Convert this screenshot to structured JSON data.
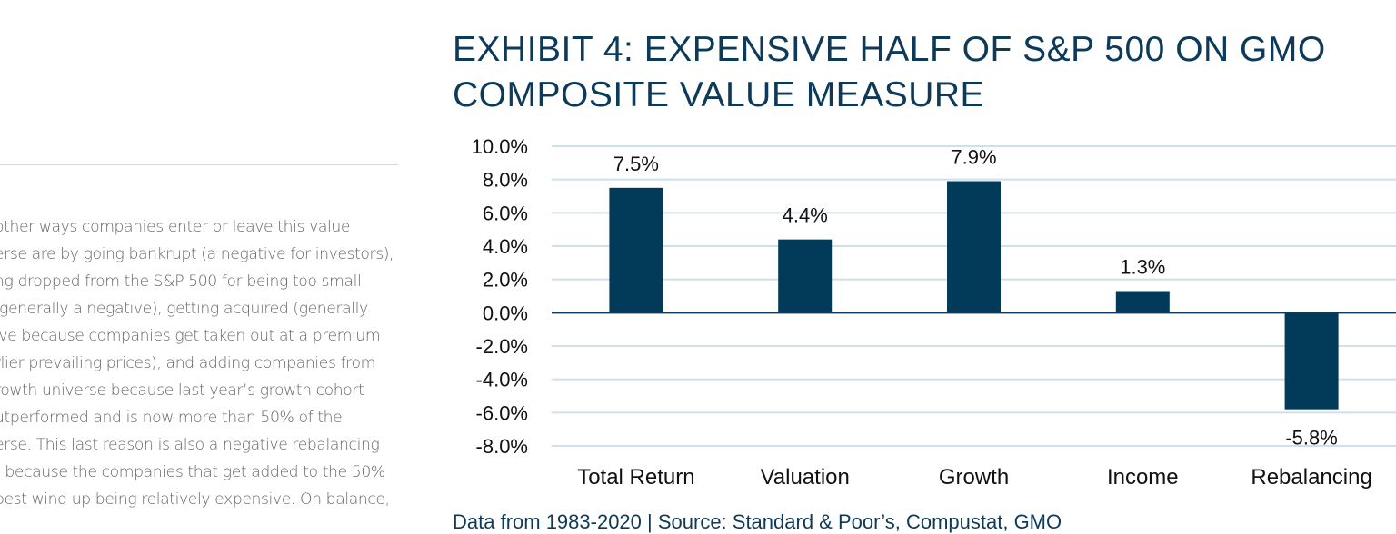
{
  "body_text": [
    "other ways companies enter or leave this value",
    "erse are by going bankrupt (a negative for investors),",
    "ng dropped from the S&P 500 for being too small",
    " generally a negative), getting acquired (generally",
    "ive because companies get taken out at a premium",
    "rlier prevailing prices), and adding companies from",
    "rowth universe because last year’s growth cohort",
    "utperformed and is now more than 50% of the",
    "erse. This last reason is also a negative rebalancing",
    "t because the companies that get added to the 50%",
    "pest wind up being relatively expensive. On balance,"
  ],
  "source_note": "Data from 1983-2020 | Source: Standard & Poor’s, Compustat, GMO",
  "chart_data": {
    "type": "bar",
    "title": "EXHIBIT 4: EXPENSIVE HALF OF S&P 500 ON GMO\nCOMPOSITE VALUE MEASURE",
    "xlabel": "",
    "ylabel": "",
    "categories": [
      "Total Return",
      "Valuation",
      "Growth",
      "Income",
      "Rebalancing"
    ],
    "values": [
      7.5,
      4.4,
      7.9,
      1.3,
      -5.8
    ],
    "value_labels": [
      "7.5%",
      "4.4%",
      "7.9%",
      "1.3%",
      "-5.8%"
    ],
    "ylim": [
      -8,
      10
    ],
    "yticks": [
      10,
      8,
      6,
      4,
      2,
      0,
      -2,
      -4,
      -6,
      -8
    ],
    "ytick_labels": [
      "10.0%",
      "8.0%",
      "6.0%",
      "4.0%",
      "2.0%",
      "0.0%",
      "-2.0%",
      "-4.0%",
      "-6.0%",
      "-8.0%"
    ],
    "grid": true,
    "legend": "none",
    "bar_color": "#023a5a",
    "grid_color": "#cfe0ea",
    "zero_line_color": "#0e3a59"
  }
}
